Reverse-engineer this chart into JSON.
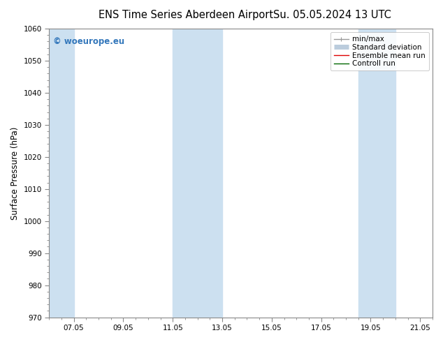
{
  "title_left": "ENS Time Series Aberdeen Airport",
  "title_right": "Su. 05.05.2024 13 UTC",
  "ylabel": "Surface Pressure (hPa)",
  "ylim": [
    970,
    1060
  ],
  "yticks": [
    970,
    980,
    990,
    1000,
    1010,
    1020,
    1030,
    1040,
    1050,
    1060
  ],
  "xlim_start": 6.0,
  "xlim_end": 21.5,
  "xtick_labels": [
    "07.05",
    "09.05",
    "11.05",
    "13.05",
    "15.05",
    "17.05",
    "19.05",
    "21.05"
  ],
  "xtick_positions": [
    7.0,
    9.0,
    11.0,
    13.0,
    15.0,
    17.0,
    19.0,
    21.0
  ],
  "background_color": "#ffffff",
  "plot_bg_color": "#ffffff",
  "shaded_bands": [
    {
      "x_start": 6.0,
      "x_end": 7.0
    },
    {
      "x_start": 11.0,
      "x_end": 13.0
    },
    {
      "x_start": 18.5,
      "x_end": 20.0
    }
  ],
  "shaded_color": "#cce0f0",
  "watermark_text": "© woeurope.eu",
  "watermark_color": "#3377bb",
  "legend_items": [
    {
      "label": "min/max",
      "color": "#999999",
      "lw": 1.0
    },
    {
      "label": "Standard deviation",
      "color": "#bbccdd",
      "lw": 5
    },
    {
      "label": "Ensemble mean run",
      "color": "#dd0000",
      "lw": 1.0
    },
    {
      "label": "Controll run",
      "color": "#006600",
      "lw": 1.0
    }
  ],
  "title_fontsize": 10.5,
  "axis_label_fontsize": 8.5,
  "tick_fontsize": 7.5,
  "legend_fontsize": 7.5,
  "watermark_fontsize": 8.5
}
